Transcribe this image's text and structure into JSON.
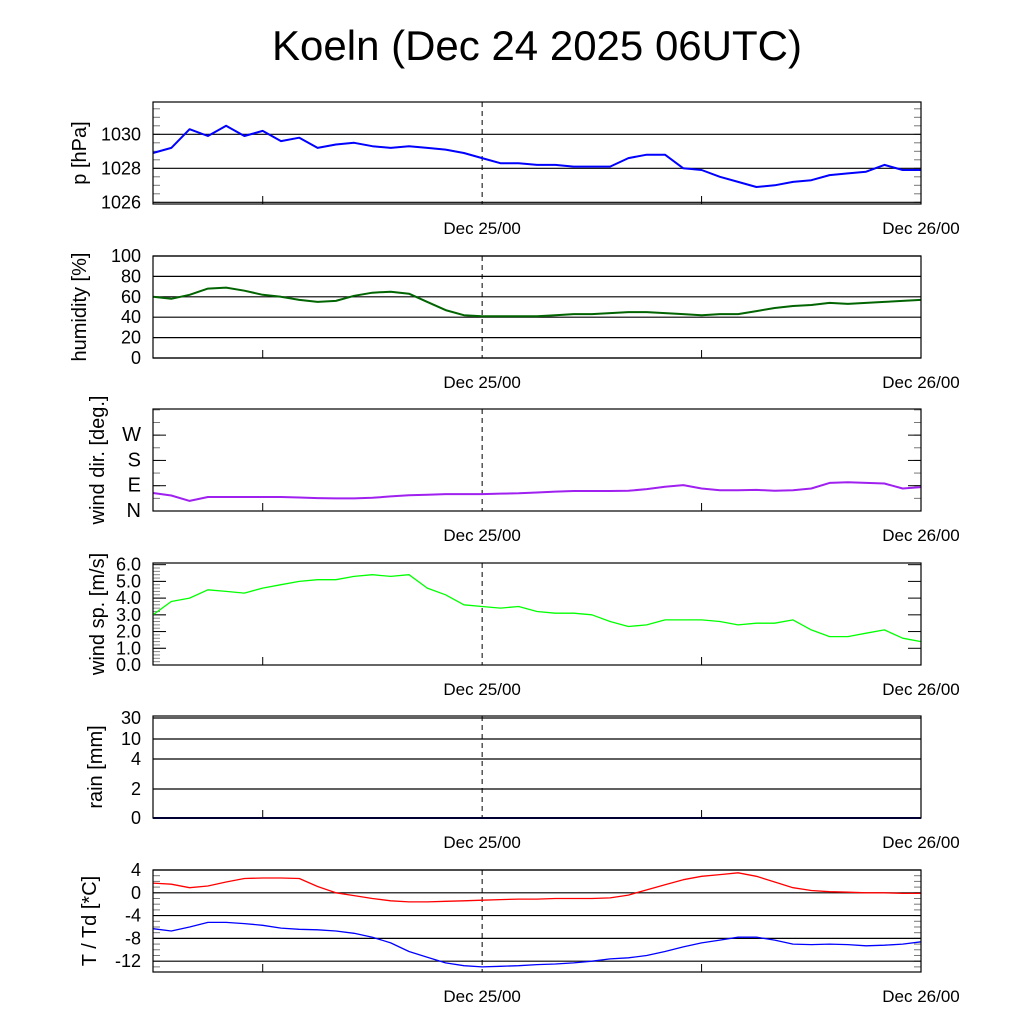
{
  "title": "Koeln (Dec 24 2025 06UTC)",
  "chart_data": {
    "type": "line",
    "x_unit": "hours since Dec 24 06UTC",
    "xlim": [
      0,
      42
    ],
    "x_tick_labels": [
      {
        "hour": 18,
        "label": "Dec 25/00"
      },
      {
        "hour": 42,
        "label": "Dec 26/00"
      }
    ],
    "dashed_marker_hour": 18,
    "panels": [
      {
        "id": "pressure",
        "ylabel": "p [hPa]",
        "ylim": [
          1025.9,
          1031.9
        ],
        "grid": true,
        "ticks": [
          {
            "v": 1026,
            "label": "1026"
          },
          {
            "v": 1028,
            "label": "1028"
          },
          {
            "v": 1030,
            "label": "1030"
          }
        ],
        "series": [
          {
            "name": "pressure",
            "color": "#0000ff",
            "values": [
              1028.9,
              1029.2,
              1030.3,
              1029.9,
              1030.5,
              1029.9,
              1030.2,
              1029.6,
              1029.8,
              1029.2,
              1029.4,
              1029.5,
              1029.3,
              1029.2,
              1029.3,
              1029.2,
              1029.1,
              1028.9,
              1028.6,
              1028.3,
              1028.3,
              1028.2,
              1028.2,
              1028.1,
              1028.1,
              1028.1,
              1028.6,
              1028.8,
              1028.8,
              1028.0,
              1027.9,
              1027.5,
              1027.2,
              1026.9,
              1027.0,
              1027.2,
              1027.3,
              1027.6,
              1027.7,
              1027.8,
              1028.2,
              1027.9,
              1027.9
            ]
          }
        ]
      },
      {
        "id": "humidity",
        "ylabel": "humidity [%]",
        "ylim": [
          0,
          100
        ],
        "grid": true,
        "ticks": [
          {
            "v": 0,
            "label": "0"
          },
          {
            "v": 20,
            "label": "20"
          },
          {
            "v": 40,
            "label": "40"
          },
          {
            "v": 60,
            "label": "60"
          },
          {
            "v": 80,
            "label": "80"
          },
          {
            "v": 100,
            "label": "100"
          }
        ],
        "series": [
          {
            "name": "humidity",
            "color": "#006400",
            "values": [
              60,
              58,
              62,
              68,
              69,
              66,
              62,
              60,
              57,
              55,
              56,
              61,
              64,
              65,
              63,
              55,
              47,
              42,
              41,
              41,
              41,
              41,
              42,
              43,
              43,
              44,
              45,
              45,
              44,
              43,
              42,
              43,
              43,
              46,
              49,
              51,
              52,
              54,
              53,
              54,
              55,
              56,
              57
            ]
          }
        ]
      },
      {
        "id": "wind-direction",
        "ylabel": "wind dir. [deg.]",
        "ylim": [
          0,
          363
        ],
        "grid": false,
        "ticks": [
          {
            "v": 0,
            "label": "N"
          },
          {
            "v": 90,
            "label": "E"
          },
          {
            "v": 180,
            "label": "S"
          },
          {
            "v": 270,
            "label": "W"
          }
        ],
        "series": [
          {
            "name": "wind direction",
            "color": "#a020f0",
            "values": [
              64,
              55,
              36,
              50,
              50,
              50,
              50,
              50,
              48,
              46,
              45,
              45,
              47,
              52,
              56,
              58,
              60,
              60,
              60,
              62,
              63,
              66,
              69,
              71,
              71,
              71,
              72,
              78,
              86,
              92,
              80,
              74,
              74,
              75,
              72,
              74,
              80,
              100,
              102,
              100,
              98,
              80,
              85
            ]
          }
        ]
      },
      {
        "id": "wind-speed",
        "ylabel": "wind sp. [m/s]",
        "ylim": [
          0,
          6.1
        ],
        "grid": false,
        "ticks": [
          {
            "v": 0,
            "label": "0.0"
          },
          {
            "v": 1,
            "label": "1.0"
          },
          {
            "v": 2,
            "label": "2.0"
          },
          {
            "v": 3,
            "label": "3.0"
          },
          {
            "v": 4,
            "label": "4.0"
          },
          {
            "v": 5,
            "label": "5.0"
          },
          {
            "v": 6,
            "label": "6.0"
          }
        ],
        "series": [
          {
            "name": "wind speed",
            "color": "#00ff00",
            "values": [
              3.0,
              3.8,
              4.0,
              4.5,
              4.4,
              4.3,
              4.6,
              4.8,
              5.0,
              5.1,
              5.1,
              5.3,
              5.4,
              5.3,
              5.4,
              4.6,
              4.2,
              3.6,
              3.5,
              3.4,
              3.5,
              3.2,
              3.1,
              3.1,
              3.0,
              2.6,
              2.3,
              2.4,
              2.7,
              2.7,
              2.7,
              2.6,
              2.4,
              2.5,
              2.5,
              2.7,
              2.1,
              1.7,
              1.7,
              1.9,
              2.1,
              1.6,
              1.4
            ]
          }
        ]
      },
      {
        "id": "rain",
        "ylabel": "rain [mm]",
        "ylim": [
          0,
          30
        ],
        "grid": true,
        "scale": "nonlinear",
        "ticks": [
          {
            "v": 0,
            "label": "0"
          },
          {
            "v": 2,
            "label": "2"
          },
          {
            "v": 4,
            "label": "4"
          },
          {
            "v": 10,
            "label": "10"
          },
          {
            "v": 30,
            "label": "30"
          }
        ],
        "series": [
          {
            "name": "rain",
            "color": "#000080",
            "values": [
              0,
              0,
              0,
              0,
              0,
              0,
              0,
              0,
              0,
              0,
              0,
              0,
              0,
              0,
              0,
              0,
              0,
              0,
              0,
              0,
              0,
              0,
              0,
              0,
              0,
              0,
              0,
              0,
              0,
              0,
              0,
              0,
              0,
              0,
              0,
              0,
              0,
              0,
              0,
              0,
              0,
              0,
              0
            ]
          }
        ]
      },
      {
        "id": "temperature",
        "ylabel": "T / Td [*C]",
        "ylim": [
          -13.9,
          4
        ],
        "grid": true,
        "ticks": [
          {
            "v": -12,
            "label": "-12"
          },
          {
            "v": -8,
            "label": "-8"
          },
          {
            "v": -4,
            "label": "-4"
          },
          {
            "v": 0,
            "label": "0"
          },
          {
            "v": 4,
            "label": "4"
          }
        ],
        "series": [
          {
            "name": "T",
            "color": "#ff0000",
            "values": [
              1.7,
              1.5,
              0.9,
              1.2,
              1.9,
              2.5,
              2.6,
              2.6,
              2.5,
              1.1,
              0.0,
              -0.5,
              -1.0,
              -1.4,
              -1.6,
              -1.6,
              -1.5,
              -1.4,
              -1.3,
              -1.2,
              -1.1,
              -1.1,
              -1.0,
              -1.0,
              -1.0,
              -0.9,
              -0.4,
              0.5,
              1.4,
              2.3,
              2.9,
              3.2,
              3.5,
              2.9,
              1.9,
              0.9,
              0.4,
              0.2,
              0.1,
              0.0,
              0.0,
              -0.1,
              -0.1
            ]
          },
          {
            "name": "Td",
            "color": "#0000ff",
            "values": [
              -6.3,
              -6.7,
              -6.0,
              -5.2,
              -5.2,
              -5.4,
              -5.7,
              -6.2,
              -6.4,
              -6.5,
              -6.7,
              -7.1,
              -7.8,
              -8.8,
              -10.3,
              -11.3,
              -12.3,
              -12.8,
              -13.0,
              -12.9,
              -12.8,
              -12.6,
              -12.5,
              -12.3,
              -12.0,
              -11.6,
              -11.4,
              -11.0,
              -10.3,
              -9.5,
              -8.8,
              -8.3,
              -7.8,
              -7.8,
              -8.3,
              -9.0,
              -9.1,
              -9.0,
              -9.1,
              -9.3,
              -9.2,
              -9.0,
              -8.6
            ]
          }
        ]
      }
    ]
  }
}
